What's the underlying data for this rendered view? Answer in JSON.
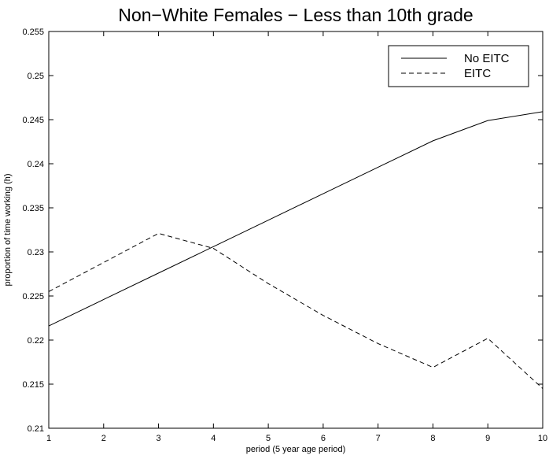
{
  "chart_data": {
    "type": "line",
    "title": "Non−White Females − Less than 10th grade",
    "xlabel": "period (5 year age period)",
    "ylabel": "proportion of time working (h)",
    "xlim": [
      1,
      10
    ],
    "ylim": [
      0.21,
      0.255
    ],
    "x": [
      1,
      2,
      3,
      4,
      5,
      6,
      7,
      8,
      9,
      10
    ],
    "x_ticks": [
      "1",
      "2",
      "3",
      "4",
      "5",
      "6",
      "7",
      "8",
      "9",
      "10"
    ],
    "y_ticks": [
      "0.21",
      "0.215",
      "0.22",
      "0.225",
      "0.23",
      "0.235",
      "0.24",
      "0.245",
      "0.25",
      "0.255"
    ],
    "grid": false,
    "legend_position": "top-right",
    "series": [
      {
        "name": "No EITC",
        "style": "solid",
        "color": "#000000",
        "values": [
          0.2216,
          0.2246,
          0.2276,
          0.2306,
          0.2336,
          0.2366,
          0.2396,
          0.2426,
          0.2449,
          0.2459
        ]
      },
      {
        "name": "EITC",
        "style": "dashed",
        "color": "#000000",
        "values": [
          0.2255,
          0.2288,
          0.2321,
          0.2304,
          0.2264,
          0.2228,
          0.2196,
          0.2169,
          0.2202,
          0.2145
        ]
      }
    ]
  }
}
